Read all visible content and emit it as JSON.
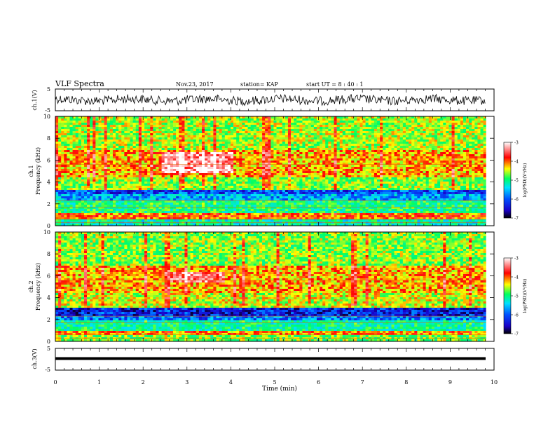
{
  "header": {
    "title": "VLF Spectra",
    "date": "Nov.23, 2017",
    "station": "station= KAP",
    "start": "start UT =  8 : 40 : 1"
  },
  "chart_data": [
    {
      "type": "line",
      "panel": "ch1-waveform",
      "ylabel": "ch.1(V)",
      "ylim": [
        -5,
        5
      ],
      "yticks": [
        "5",
        "-5"
      ],
      "xlim": [
        0,
        10
      ],
      "style": "noisy black waveform, amplitude roughly within ±3 V"
    },
    {
      "type": "heatmap",
      "panel": "ch1-spectrogram",
      "ylabel_line1": "ch.1",
      "ylabel_line2": "Frequency (kHz)",
      "ylim": [
        0,
        10
      ],
      "yticks": [
        "0",
        "2",
        "4",
        "6",
        "8",
        "10"
      ],
      "xlim": [
        0,
        10
      ],
      "bands": [
        {
          "fmin": 0.0,
          "fmax": 0.6,
          "level": -5.5
        },
        {
          "fmin": 0.6,
          "fmax": 1.2,
          "level": -4.2
        },
        {
          "fmin": 1.2,
          "fmax": 2.3,
          "level": -5.3
        },
        {
          "fmin": 2.3,
          "fmax": 2.8,
          "level": -6.0
        },
        {
          "fmin": 2.8,
          "fmax": 3.3,
          "level": -6.4
        },
        {
          "fmin": 3.3,
          "fmax": 4.5,
          "level": -4.9
        },
        {
          "fmin": 4.5,
          "fmax": 7.0,
          "level": -4.4
        },
        {
          "fmin": 7.0,
          "fmax": 10.0,
          "level": -4.8
        }
      ],
      "emission": {
        "tmin": 2.4,
        "tmax": 4.0,
        "fmin": 4.8,
        "fmax": 6.8,
        "level": -3.3
      }
    },
    {
      "type": "heatmap",
      "panel": "ch2-spectrogram",
      "ylabel_line1": "ch.2",
      "ylabel_line2": "Frequency (kHz)",
      "ylim": [
        0,
        10
      ],
      "yticks": [
        "0",
        "2",
        "4",
        "6",
        "8",
        "10"
      ],
      "xlim": [
        0,
        10
      ],
      "bands": [
        {
          "fmin": 0.0,
          "fmax": 0.6,
          "level": -5.0
        },
        {
          "fmin": 0.6,
          "fmax": 1.0,
          "level": -4.3
        },
        {
          "fmin": 1.0,
          "fmax": 2.0,
          "level": -5.4
        },
        {
          "fmin": 2.0,
          "fmax": 2.4,
          "level": -6.2
        },
        {
          "fmin": 2.4,
          "fmax": 3.1,
          "level": -6.6
        },
        {
          "fmin": 3.1,
          "fmax": 4.5,
          "level": -4.7
        },
        {
          "fmin": 4.5,
          "fmax": 7.0,
          "level": -4.4
        },
        {
          "fmin": 7.0,
          "fmax": 10.0,
          "level": -4.9
        }
      ],
      "emission": {
        "tmin": 2.6,
        "tmax": 3.8,
        "fmin": 5.4,
        "fmax": 6.4,
        "level": -3.5
      }
    },
    {
      "type": "line",
      "panel": "ch3-waveform",
      "ylabel": "ch.3(V)",
      "ylim": [
        -5,
        5
      ],
      "yticks": [
        "5",
        "-5"
      ],
      "xlim": [
        0,
        10
      ],
      "xticks": [
        "0",
        "1",
        "2",
        "3",
        "4",
        "5",
        "6",
        "7",
        "8",
        "9",
        "10"
      ],
      "xlabel": "Time (min)",
      "style": "flat thick line near 0 V"
    }
  ],
  "colorbar": {
    "label": "log(PSD)(V²/Hz)",
    "range": [
      -7,
      -3
    ],
    "ticks": [
      "-3",
      "-4",
      "-5",
      "-6",
      "-7"
    ],
    "colors": [
      "#000000",
      "#1a00c8",
      "#0050ff",
      "#00e0ff",
      "#00ff60",
      "#ffff00",
      "#ff0000",
      "#ffffff"
    ]
  }
}
